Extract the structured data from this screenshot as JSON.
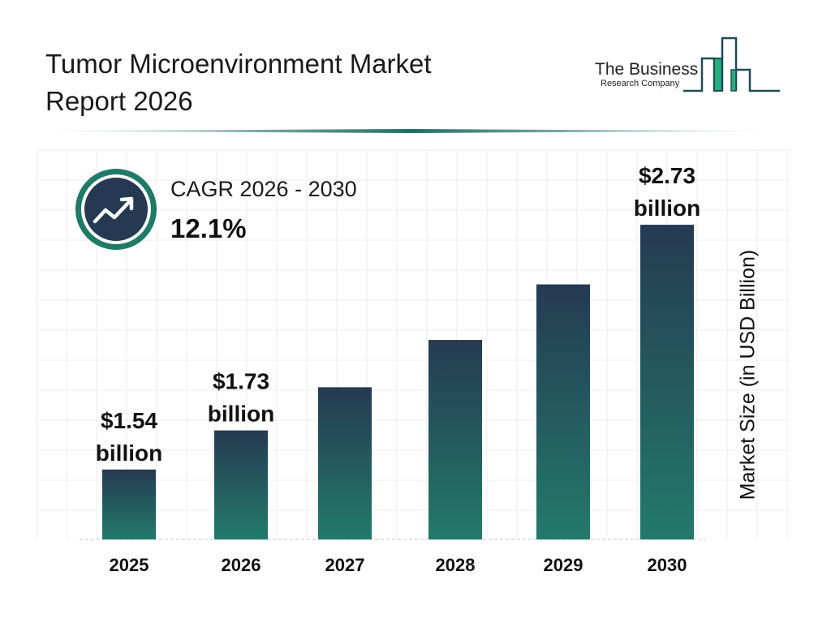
{
  "header": {
    "title_line1": "Tumor Microenvironment Market",
    "title_line2": "Report 2026",
    "logo_text_line1": "The Business",
    "logo_text_line2": "Research Company"
  },
  "cagr": {
    "label": "CAGR 2026 - 2030",
    "value": "12.1%",
    "icon": "trending-up-icon"
  },
  "colors": {
    "bar_top": "#253a52",
    "bar_bottom": "#237a6b",
    "accent": "#1f7a68",
    "logo_green": "#22b07d",
    "logo_dark": "#1f4a5a"
  },
  "chart_data": {
    "type": "bar",
    "categories": [
      "2025",
      "2026",
      "2027",
      "2028",
      "2029",
      "2030"
    ],
    "values": [
      1.54,
      1.73,
      1.94,
      2.17,
      2.44,
      2.73
    ],
    "data_labels": [
      {
        "index": 0,
        "line1": "$1.54",
        "line2": "billion"
      },
      {
        "index": 1,
        "line1": "$1.73",
        "line2": "billion"
      },
      {
        "index": 5,
        "line1": "$2.73",
        "line2": "billion"
      }
    ],
    "ylabel": "Market Size (in USD Billion)",
    "xlabel": "",
    "ylim": [
      1.2,
      2.75
    ],
    "grid": true
  }
}
